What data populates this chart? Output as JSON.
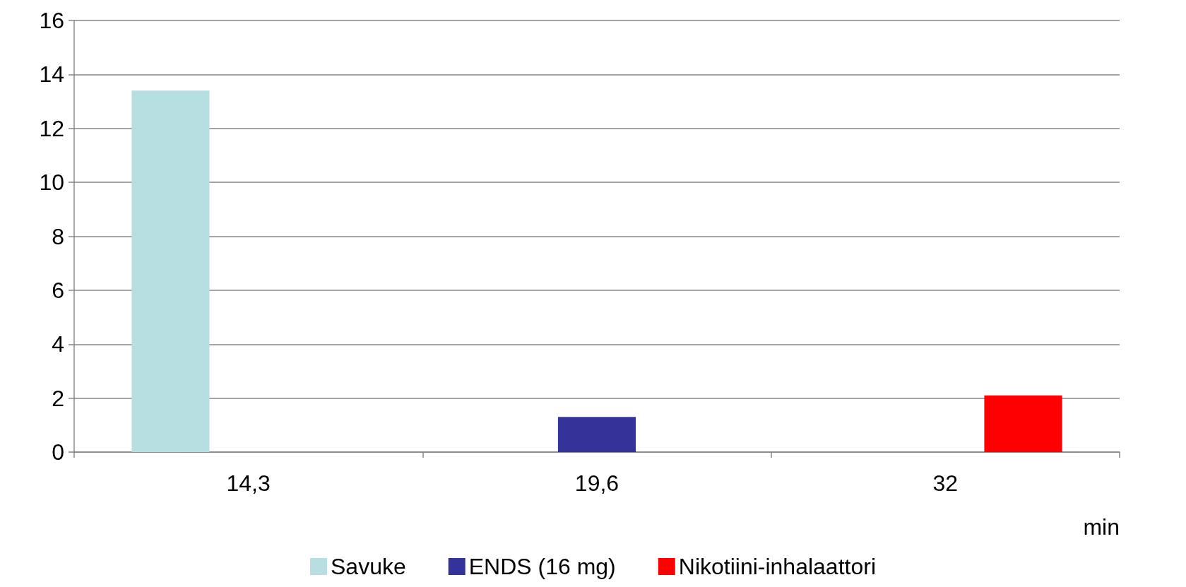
{
  "chart_data": {
    "type": "bar",
    "categories": [
      "14,3",
      "19,6",
      "32"
    ],
    "xlabel": "min",
    "series": [
      {
        "name": "Savuke",
        "color": "#b7dfe1",
        "values": [
          13.4,
          null,
          null
        ]
      },
      {
        "name": "ENDS (16 mg)",
        "color": "#333399",
        "values": [
          null,
          1.3,
          null
        ]
      },
      {
        "name": "Nikotiini-inhalaattori",
        "color": "#ff0000",
        "values": [
          null,
          null,
          2.1
        ]
      }
    ],
    "ylim": [
      0,
      16
    ],
    "yticks": [
      0,
      2,
      4,
      6,
      8,
      10,
      12,
      14,
      16
    ],
    "grid": "y",
    "legend": "bottom"
  }
}
